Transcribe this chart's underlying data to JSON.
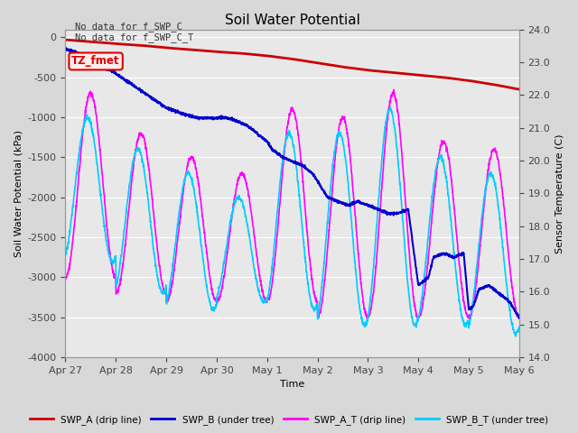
{
  "title": "Soil Water Potential",
  "xlabel": "Time",
  "ylabel_left": "Soil Water Potential (kPa)",
  "ylabel_right": "Sensor Temperature (C)",
  "annotation_text": "No data for f_SWP_C\nNo data for f_SWP_C_T",
  "box_label": "TZ_fmet",
  "box_color": "#dd0000",
  "box_bg": "#ffeeee",
  "ylim_left": [
    -4000,
    100
  ],
  "ylim_right": [
    14.0,
    24.0
  ],
  "yticks_left": [
    0,
    -500,
    -1000,
    -1500,
    -2000,
    -2500,
    -3000,
    -3500,
    -4000
  ],
  "yticks_right": [
    14.0,
    15.0,
    16.0,
    17.0,
    18.0,
    19.0,
    20.0,
    21.0,
    22.0,
    23.0,
    24.0
  ],
  "xtick_labels": [
    "Apr 27",
    "Apr 28",
    "Apr 29",
    "Apr 30",
    "May 1",
    "May 2",
    "May 3",
    "May 4",
    "May 5",
    "May 6"
  ],
  "xtick_positions": [
    0,
    1,
    2,
    3,
    4,
    5,
    6,
    7,
    8,
    9
  ],
  "legend_labels": [
    "SWP_A (drip line)",
    "SWP_B (under tree)",
    "SWP_A_T (drip line)",
    "SWP_B_T (under tree)"
  ],
  "legend_colors": [
    "#cc0000",
    "#0000cc",
    "#ff00ff",
    "#00ccff"
  ],
  "background_color": "#d8d8d8",
  "plot_bg_color": "#e8e8e8",
  "grid_color": "#ffffff"
}
